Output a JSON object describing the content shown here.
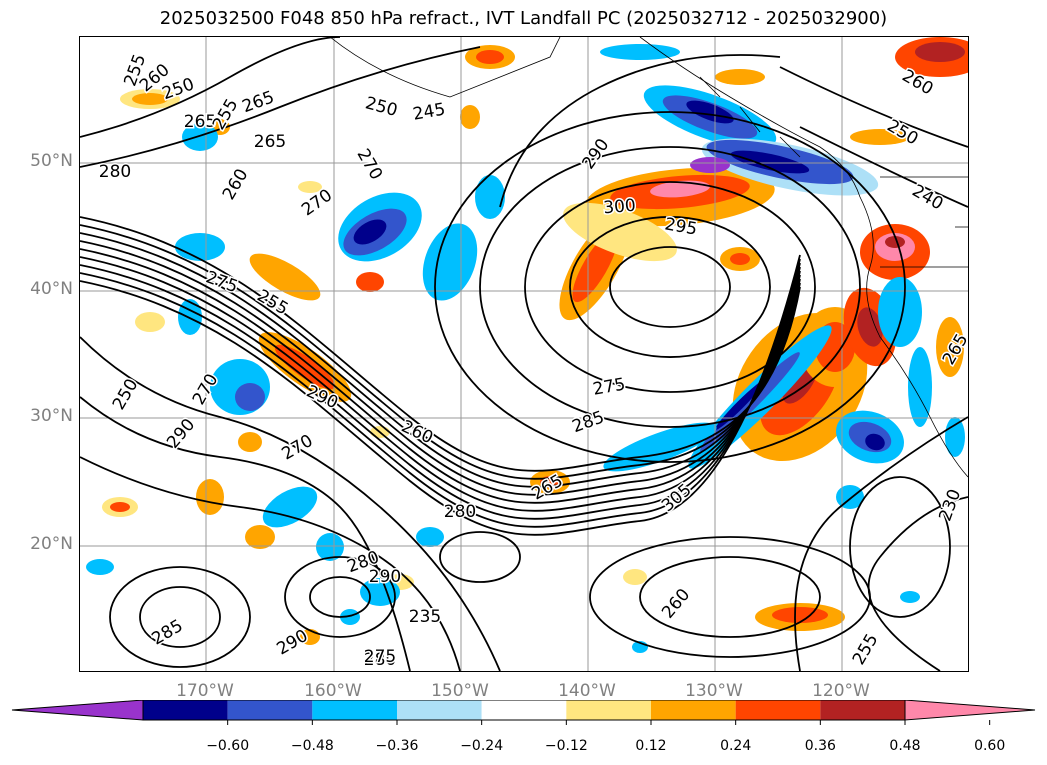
{
  "title": "2025032500 F048 850 hPa refract., IVT Landfall PC (2025032712 - 2025032900)",
  "chart_data": {
    "type": "contour map",
    "title": "2025032500 F048 850 hPa refract., IVT Landfall PC (2025032712 - 2025032900)",
    "lat_ticks": [
      "50°N",
      "40°N",
      "30°N",
      "20°N"
    ],
    "lon_ticks": [
      "170°W",
      "160°W",
      "150°W",
      "140°W",
      "130°W",
      "120°W"
    ],
    "lat_range": [
      10,
      59
    ],
    "lon_range": [
      -180,
      -110
    ],
    "grid": true,
    "contour_labels": [
      "255",
      "260",
      "250",
      "265",
      "255",
      "260",
      "265",
      "265",
      "250",
      "245",
      "270",
      "270",
      "280",
      "275",
      "255",
      "250",
      "290",
      "270",
      "290",
      "260",
      "285",
      "275",
      "270",
      "265",
      "280",
      "290",
      "295",
      "300",
      "305",
      "260",
      "280",
      "290",
      "285",
      "290",
      "280",
      "275",
      "235",
      "240",
      "250",
      "260",
      "265",
      "230",
      "255"
    ],
    "colorbar": {
      "ticks": [
        "−0.60",
        "−0.48",
        "−0.36",
        "−0.24",
        "−0.12",
        "0.12",
        "0.24",
        "0.36",
        "0.48",
        "0.60"
      ],
      "colors": [
        "#9933cc",
        "#00008b",
        "#3355cc",
        "#00bfff",
        "#ade0f7",
        "#ffffff",
        "#ffe680",
        "#ffa500",
        "#ff4500",
        "#b22222",
        "#ff88aa"
      ],
      "extend": "both"
    }
  }
}
